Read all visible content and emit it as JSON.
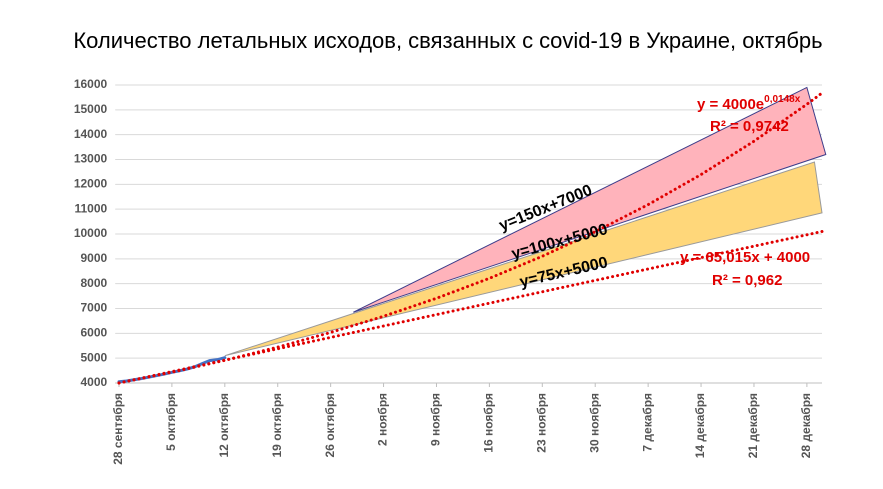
{
  "chart_data": {
    "type": "line",
    "title": "Количество летальных исходов, связанных с covid-19 в Украине, октябрь",
    "xlim": [
      -0.5,
      93
    ],
    "xticks": [
      {
        "value": 0,
        "label": "28 сентября"
      },
      {
        "value": 7,
        "label": "5 октября"
      },
      {
        "value": 14,
        "label": "12 октября"
      },
      {
        "value": 21,
        "label": "19 октября"
      },
      {
        "value": 28,
        "label": "26 октября"
      },
      {
        "value": 35,
        "label": "2 ноября"
      },
      {
        "value": 42,
        "label": "9 ноября"
      },
      {
        "value": 49,
        "label": "16 ноября"
      },
      {
        "value": 56,
        "label": "23 ноября"
      },
      {
        "value": 63,
        "label": "30 ноября"
      },
      {
        "value": 70,
        "label": "7 декабря"
      },
      {
        "value": 77,
        "label": "14 декабря"
      },
      {
        "value": 84,
        "label": "21 декабря"
      },
      {
        "value": 91,
        "label": "28 декабря"
      }
    ],
    "ylim": [
      4000,
      16000
    ],
    "yticks": [
      4000,
      5000,
      6000,
      7000,
      8000,
      9000,
      10000,
      11000,
      12000,
      13000,
      14000,
      15000,
      16000
    ],
    "grid": true,
    "areas": [
      {
        "color": "#ffd77a",
        "stroke": "#9a9a9a",
        "x": [
          14,
          92,
          93
        ],
        "values": [
          5100,
          12900,
          10850
        ]
      },
      {
        "color": "#ffb3bb",
        "stroke": "#3d3d8a",
        "x": [
          31,
          91,
          93.5
        ],
        "values": [
          6850,
          15900,
          13200
        ]
      }
    ],
    "series": [
      {
        "color": "#4472c4",
        "style": "solid",
        "x": [
          0,
          1,
          2,
          3,
          4,
          5,
          6,
          7,
          8,
          9,
          10,
          11,
          12,
          13,
          14
        ],
        "values": [
          4050,
          4080,
          4130,
          4180,
          4240,
          4300,
          4360,
          4430,
          4490,
          4560,
          4650,
          4780,
          4900,
          4940,
          5020
        ]
      },
      {
        "color": "#e00000",
        "style": "dotted",
        "x": [
          0,
          7,
          14,
          21,
          28,
          35,
          42,
          49,
          56,
          63,
          70,
          77,
          84,
          91,
          93
        ],
        "values": [
          4000,
          4433,
          4913,
          5445,
          6035,
          6688,
          7412,
          8215,
          9104,
          10090,
          11183,
          12394,
          13736,
          15223,
          15676
        ]
      },
      {
        "color": "#e00000",
        "style": "dotted",
        "x": [
          0,
          93
        ],
        "values": [
          4000,
          10100
        ]
      }
    ],
    "band_labels": [
      "y=150x+7000",
      "y=100x+5000",
      "y=75x+5000"
    ],
    "trend_labels": [
      {
        "equation": "y = 4000e",
        "exponent": "0,0148x",
        "r2": "R² = 0,9742"
      },
      {
        "equation": "y = 65,015x + 4000",
        "r2": "R² = 0,962"
      }
    ]
  }
}
